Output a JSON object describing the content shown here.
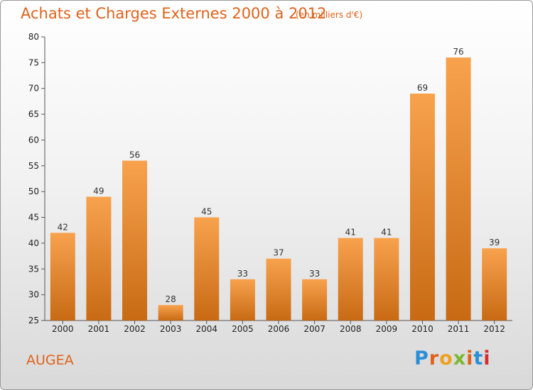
{
  "title": "Achats et Charges Externes 2000 à 2012",
  "unit": "(en milliers d'€)",
  "commune": "AUGEA",
  "logo": {
    "text": "Proxiti",
    "colors": [
      "#2b8fd6",
      "#e0621a",
      "#f0a020",
      "#7cb82f",
      "#e0621a",
      "#2b8fd6",
      "#d32f2f"
    ]
  },
  "colors": {
    "bar_top": "#f8a24e",
    "bar_bottom": "#c86a14",
    "title": "#e0621a"
  },
  "chart_data": {
    "type": "bar",
    "categories": [
      "2000",
      "2001",
      "2002",
      "2003",
      "2004",
      "2005",
      "2006",
      "2007",
      "2008",
      "2009",
      "2010",
      "2011",
      "2012"
    ],
    "values": [
      42,
      49,
      56,
      28,
      45,
      33,
      37,
      33,
      41,
      41,
      69,
      76,
      39
    ],
    "ylim": [
      25,
      80
    ],
    "yticks": [
      25,
      30,
      35,
      40,
      45,
      50,
      55,
      60,
      65,
      70,
      75,
      80
    ],
    "grid": false,
    "legend": "none"
  }
}
